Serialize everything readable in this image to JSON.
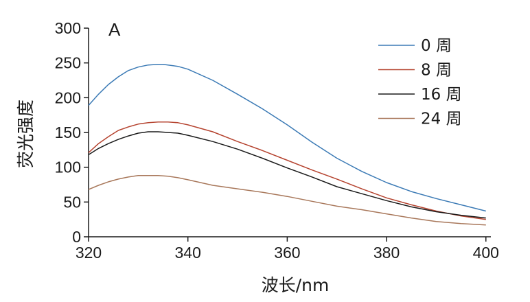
{
  "chart_data": {
    "type": "line",
    "panel_label": "A",
    "xlabel": "波长/nm",
    "ylabel": "荧光强度",
    "xlim": [
      320,
      401
    ],
    "ylim": [
      0,
      300
    ],
    "xticks": [
      320,
      340,
      360,
      380,
      400
    ],
    "yticks": [
      0,
      50,
      100,
      150,
      200,
      250,
      300
    ],
    "legend_position": "top-right",
    "grid": false,
    "series": [
      {
        "name": "0 周",
        "color": "#3b7ab5",
        "x": [
          320,
          322,
          324,
          326,
          328,
          330,
          332,
          334,
          335,
          336,
          338,
          340,
          345,
          350,
          355,
          360,
          365,
          370,
          375,
          380,
          385,
          390,
          395,
          400
        ],
        "y": [
          189,
          205,
          219,
          230,
          239,
          244,
          247,
          248,
          248,
          247,
          245,
          241,
          225,
          205,
          184,
          161,
          136,
          113,
          94,
          78,
          65,
          55,
          46,
          37
        ]
      },
      {
        "name": "8 周",
        "color": "#b5432f",
        "x": [
          320,
          322,
          324,
          326,
          328,
          330,
          332,
          334,
          336,
          338,
          340,
          345,
          350,
          355,
          360,
          365,
          370,
          375,
          380,
          385,
          390,
          395,
          400
        ],
        "y": [
          121,
          134,
          144,
          153,
          158,
          162,
          164,
          165,
          165,
          164,
          161,
          151,
          137,
          124,
          110,
          96,
          83,
          69,
          56,
          46,
          37,
          30,
          25
        ]
      },
      {
        "name": "16 周",
        "color": "#1a1a1a",
        "x": [
          320,
          322,
          324,
          326,
          328,
          330,
          332,
          334,
          336,
          338,
          340,
          345,
          350,
          355,
          360,
          365,
          370,
          375,
          380,
          385,
          390,
          395,
          400
        ],
        "y": [
          118,
          127,
          134,
          140,
          145,
          149,
          151,
          151,
          150,
          149,
          146,
          137,
          126,
          113,
          99,
          86,
          72,
          62,
          52,
          43,
          36,
          31,
          27
        ]
      },
      {
        "name": "24 周",
        "color": "#a8775a",
        "x": [
          320,
          322,
          324,
          326,
          328,
          330,
          332,
          334,
          336,
          338,
          340,
          345,
          350,
          355,
          360,
          365,
          370,
          375,
          380,
          385,
          390,
          395,
          400
        ],
        "y": [
          68,
          74,
          79,
          83,
          86,
          88,
          88,
          88,
          87,
          85,
          82,
          74,
          69,
          64,
          58,
          51,
          44,
          39,
          33,
          27,
          22,
          19,
          17
        ]
      }
    ]
  }
}
